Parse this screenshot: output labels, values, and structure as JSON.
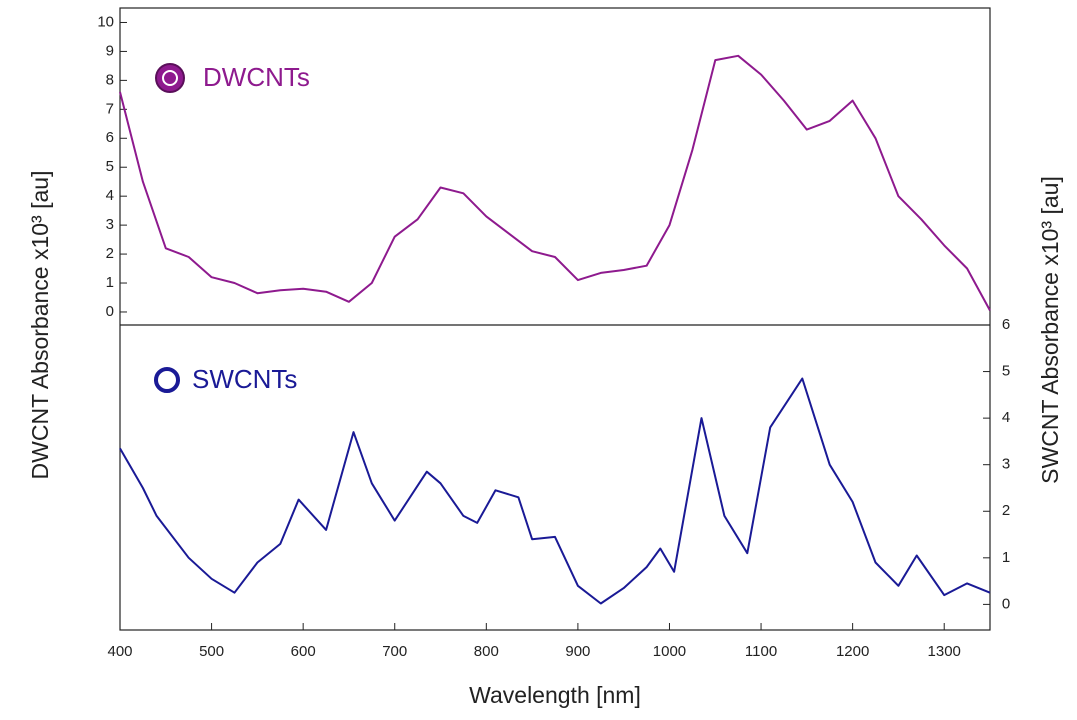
{
  "chart_data": [
    {
      "type": "line",
      "ylabel": "DWCNT Absorbance x10³ [au]",
      "x": [
        400,
        425,
        450,
        475,
        500,
        525,
        550,
        575,
        600,
        625,
        650,
        675,
        700,
        725,
        750,
        775,
        800,
        825,
        850,
        875,
        900,
        925,
        950,
        975,
        1000,
        1025,
        1050,
        1075,
        1100,
        1125,
        1150,
        1175,
        1200,
        1225,
        1250,
        1275,
        1300,
        1325,
        1350
      ],
      "series": [
        {
          "name": "DWCNTs",
          "color": "#8e1a8e",
          "values": [
            7.6,
            4.5,
            2.2,
            1.9,
            1.2,
            1.0,
            0.65,
            0.75,
            0.8,
            0.7,
            0.35,
            1.0,
            2.6,
            3.2,
            4.3,
            4.1,
            3.3,
            2.7,
            2.1,
            1.9,
            1.1,
            1.35,
            1.45,
            1.6,
            3.0,
            5.6,
            8.7,
            8.85,
            8.2,
            7.3,
            6.3,
            6.6,
            7.3,
            6.0,
            4.0,
            3.2,
            2.3,
            1.5,
            0.05
          ]
        }
      ],
      "xlim": [
        400,
        1350
      ],
      "ylim": [
        -0.45,
        10.5
      ],
      "yticks": [
        0,
        1,
        2,
        3,
        4,
        5,
        6,
        7,
        8,
        9,
        10
      ]
    },
    {
      "type": "line",
      "xlabel": "Wavelength [nm]",
      "y2label": "SWCNT Absorbance x10³ [au]",
      "x": [
        400,
        425,
        440,
        475,
        500,
        525,
        550,
        575,
        595,
        625,
        655,
        675,
        700,
        735,
        750,
        775,
        790,
        810,
        835,
        850,
        875,
        900,
        925,
        950,
        975,
        990,
        1005,
        1035,
        1060,
        1085,
        1110,
        1145,
        1175,
        1200,
        1225,
        1250,
        1270,
        1300,
        1325,
        1350
      ],
      "series": [
        {
          "name": "SWCNTs",
          "color": "#1a1a96",
          "axis": "y2",
          "values": [
            3.35,
            2.5,
            1.9,
            1.0,
            0.55,
            0.25,
            0.9,
            1.3,
            2.25,
            1.6,
            3.7,
            2.6,
            1.8,
            2.85,
            2.6,
            1.9,
            1.75,
            2.45,
            2.3,
            1.4,
            1.45,
            0.4,
            0.02,
            0.35,
            0.8,
            1.2,
            0.7,
            4.0,
            1.9,
            1.1,
            3.8,
            4.85,
            3.0,
            2.2,
            0.9,
            0.4,
            1.05,
            0.2,
            0.45,
            0.25
          ]
        }
      ],
      "xlim": [
        400,
        1350
      ],
      "y2lim": [
        -0.55,
        6
      ],
      "xticks": [
        400,
        500,
        600,
        700,
        800,
        900,
        1000,
        1100,
        1200,
        1300
      ],
      "y2ticks": [
        0,
        1,
        2,
        3,
        4,
        5,
        6
      ]
    }
  ]
}
